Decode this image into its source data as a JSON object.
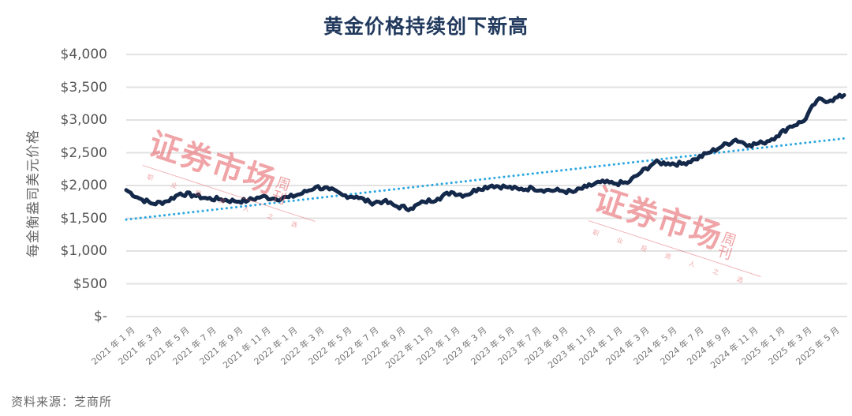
{
  "chart_data": {
    "type": "line",
    "title": "黄金价格持续创下新高",
    "xlabel": "",
    "ylabel": "每金衡盎司美元价格",
    "ylim": [
      0,
      4000
    ],
    "y_ticks": [
      "$4,000",
      "$3,500",
      "$3,000",
      "$2,500",
      "$2,000",
      "$1,500",
      "$1,000",
      "$500",
      "$-"
    ],
    "y_tick_values": [
      4000,
      3500,
      3000,
      2500,
      2000,
      1500,
      1000,
      500,
      0
    ],
    "x_ticks": [
      "2021 年 1 月",
      "2021 年 3 月",
      "2021 年 5 月",
      "2021 年 7 月",
      "2021 年 9 月",
      "2021 年 11 月",
      "2022 年 1 月",
      "2022 年 3 月",
      "2022 年 5 月",
      "2022 年 7 月",
      "2022 年 9 月",
      "2022 年 11 月",
      "2023 年 1 月",
      "2023 年 3 月",
      "2023 年 5 月",
      "2023 年 7 月",
      "2023 年 9 月",
      "2023 年 11 月",
      "2024 年 1 月",
      "2024 年 3 月",
      "2024 年 5 月",
      "2024 年 7 月",
      "2024 年 9 月",
      "2024 年 11 月",
      "2025 年 1 月",
      "2025 年 3 月",
      "2025 年 5 月"
    ],
    "grid": true,
    "legend": null,
    "series": [
      {
        "name": "黄金价格",
        "color": "#14294a",
        "style": "solid",
        "x": [
          "2021-01",
          "2021-02",
          "2021-03",
          "2021-04",
          "2021-05",
          "2021-06",
          "2021-07",
          "2021-08",
          "2021-09",
          "2021-10",
          "2021-11",
          "2021-12",
          "2022-01",
          "2022-02",
          "2022-03",
          "2022-04",
          "2022-05",
          "2022-06",
          "2022-07",
          "2022-08",
          "2022-09",
          "2022-10",
          "2022-11",
          "2022-12",
          "2023-01",
          "2023-02",
          "2023-03",
          "2023-04",
          "2023-05",
          "2023-06",
          "2023-07",
          "2023-08",
          "2023-09",
          "2023-10",
          "2023-11",
          "2023-12",
          "2024-01",
          "2024-02",
          "2024-03",
          "2024-04",
          "2024-05",
          "2024-06",
          "2024-07",
          "2024-08",
          "2024-09",
          "2024-10",
          "2024-11",
          "2024-12",
          "2025-01",
          "2025-02",
          "2025-03",
          "2025-04",
          "2025-05",
          "2025-06"
        ],
        "values": [
          1930,
          1800,
          1720,
          1760,
          1880,
          1850,
          1800,
          1790,
          1760,
          1770,
          1830,
          1800,
          1820,
          1880,
          1980,
          1940,
          1850,
          1830,
          1740,
          1760,
          1680,
          1650,
          1750,
          1800,
          1900,
          1850,
          1950,
          2000,
          1980,
          1940,
          1960,
          1930,
          1920,
          1900,
          1980,
          2050,
          2030,
          2040,
          2200,
          2350,
          2340,
          2330,
          2400,
          2500,
          2600,
          2700,
          2620,
          2650,
          2750,
          2900,
          2980,
          3300,
          3300,
          3380
        ]
      },
      {
        "name": "趋势线",
        "color": "#2aa6e0",
        "style": "dotted",
        "x": [
          "2021-01",
          "2025-06"
        ],
        "values": [
          1480,
          2720
        ]
      }
    ]
  },
  "watermarks": [
    {
      "main": "证券市场",
      "side": "周刊",
      "english": "WEEKLY ON STOCKS",
      "motto": "职业投资人之选"
    },
    {
      "main": "证券市场",
      "side": "周刊",
      "english": "WEEKLY ON STOCKS",
      "motto": "职业投资人之选"
    }
  ],
  "footer": {
    "source": "资料来源：芝商所"
  }
}
